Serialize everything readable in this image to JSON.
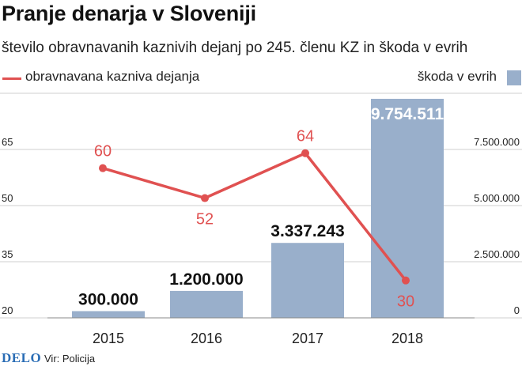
{
  "chart_data": {
    "type": "bar",
    "title": "Pranje denarja v Sloveniji",
    "subtitle": "število obravnavanih kaznivih dejanj po 245. členu KZ in škoda v evrih",
    "categories": [
      "2015",
      "2016",
      "2017",
      "2018"
    ],
    "series": [
      {
        "name": "škoda v evrih",
        "type": "bar",
        "axis": "right",
        "values": [
          300000,
          1200000,
          3337243,
          9754511
        ],
        "labels": [
          "300.000",
          "1.200.000",
          "3.337.243",
          "9.754.511"
        ],
        "color": "#99afcb"
      },
      {
        "name": "obravnavana kazniva dejanja",
        "type": "line",
        "axis": "left",
        "values": [
          60,
          52,
          64,
          30
        ],
        "labels": [
          "60",
          "52",
          "64",
          "30"
        ],
        "color": "#e05151"
      }
    ],
    "y_left": {
      "ticks": [
        20,
        35,
        50,
        65
      ],
      "tick_labels": [
        "20",
        "35",
        "50",
        "65"
      ],
      "range": [
        20,
        80
      ]
    },
    "y_right": {
      "ticks": [
        0,
        2500000,
        5000000,
        7500000
      ],
      "tick_labels": [
        "0",
        "2.500.000",
        "5.000.000",
        "7.500.000"
      ],
      "range": [
        0,
        10000000
      ]
    },
    "grid": true,
    "legend": "top"
  },
  "footer": {
    "logo": "DELO",
    "source": "Vir: Policija"
  },
  "colors": {
    "bar": "#99afcb",
    "line": "#e05151",
    "bar_label": "#111111",
    "line_label": "#e05151"
  }
}
